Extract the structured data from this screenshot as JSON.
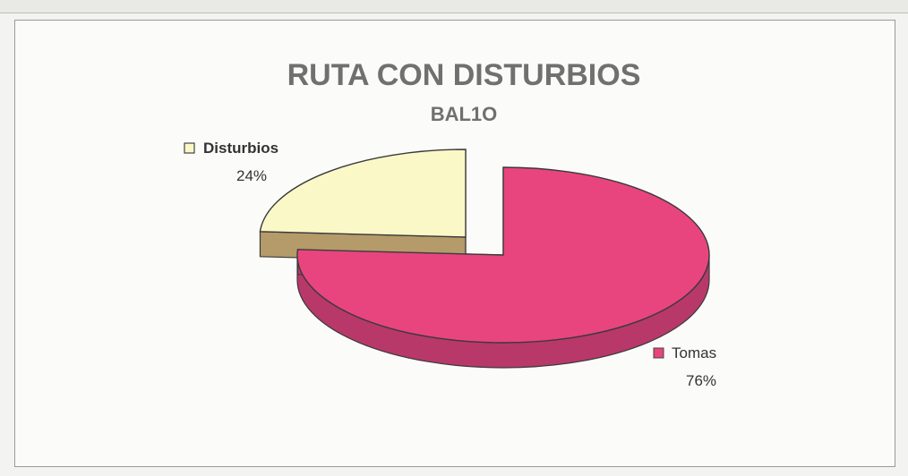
{
  "chart_data": {
    "type": "pie",
    "title": "RUTA CON DISTURBIOS",
    "subtitle": "BAL1O",
    "slices": [
      {
        "label": "Tomas",
        "value": 76,
        "percent_label": "76%",
        "color": "#e8457f",
        "side_color": "#b8386a"
      },
      {
        "label": "Disturbios",
        "value": 24,
        "percent_label": "24%",
        "color": "#fbf8c8",
        "side_color": "#b59a6a"
      }
    ]
  }
}
